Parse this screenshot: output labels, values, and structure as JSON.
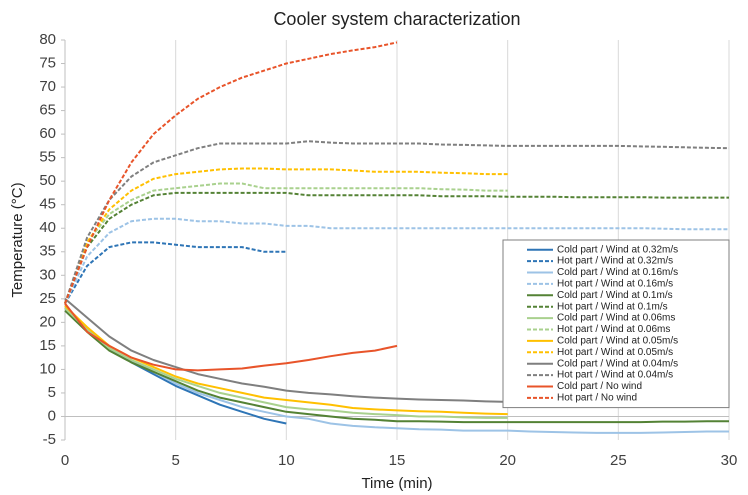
{
  "chart_data": {
    "type": "line",
    "title": "Cooler system characterization",
    "x_label": "Time (min)",
    "y_label": "Temperature (°C)",
    "xlim": [
      0,
      30
    ],
    "xticks": [
      0,
      5,
      10,
      15,
      20,
      25,
      30
    ],
    "ylim": [
      -5,
      80
    ],
    "yticks": [
      -5,
      0,
      5,
      10,
      15,
      20,
      25,
      30,
      35,
      40,
      45,
      50,
      55,
      60,
      65,
      70,
      75,
      80
    ],
    "grid": "x",
    "legend": "center right",
    "x": [
      0,
      1,
      2,
      3,
      4,
      5,
      6,
      7,
      8,
      9,
      10,
      11,
      12,
      13,
      14,
      15,
      16,
      17,
      18,
      19,
      20,
      21,
      22,
      23,
      24,
      25,
      26,
      27,
      28,
      29,
      30
    ],
    "series": [
      {
        "name": "Cold part / Wind at 0.32m/s",
        "color": "#2e75b6",
        "dashed": false,
        "values": [
          23,
          18.5,
          14.5,
          11.5,
          9,
          6.5,
          4.5,
          2.5,
          1,
          -0.5,
          -1.5,
          null,
          null,
          null,
          null,
          null,
          null,
          null,
          null,
          null,
          null,
          null,
          null,
          null,
          null,
          null,
          null,
          null,
          null,
          null,
          null
        ]
      },
      {
        "name": "Hot part / Wind at 0.32m/s",
        "color": "#2e75b6",
        "dashed": true,
        "values": [
          24,
          32,
          36,
          37,
          37,
          36.5,
          36,
          36,
          36,
          35,
          35,
          null,
          null,
          null,
          null,
          null,
          null,
          null,
          null,
          null,
          null,
          null,
          null,
          null,
          null,
          null,
          null,
          null,
          null,
          null,
          null
        ]
      },
      {
        "name": "Cold part / Wind at 0.16m/s",
        "color": "#9dc3e6",
        "dashed": false,
        "values": [
          23,
          18.5,
          14.5,
          12,
          9.5,
          7,
          5,
          3.5,
          2,
          1,
          0,
          -0.5,
          -1.5,
          -2,
          -2.3,
          -2.5,
          -2.7,
          -2.8,
          -3,
          -3,
          -3,
          -3.2,
          -3.3,
          -3.4,
          -3.5,
          -3.5,
          -3.5,
          -3.4,
          -3.3,
          -3.2,
          -3.2
        ]
      },
      {
        "name": "Hot part / Wind at 0.16m/s",
        "color": "#9dc3e6",
        "dashed": true,
        "values": [
          24,
          34,
          39,
          41.5,
          42,
          42,
          41.5,
          41.5,
          41,
          41,
          40.5,
          40.5,
          40,
          40,
          40,
          40,
          40,
          40,
          40,
          40,
          40,
          40,
          40,
          40,
          40,
          40,
          40,
          39.9,
          39.8,
          39.8,
          39.8
        ]
      },
      {
        "name": "Cold part / Wind at 0.1m/s",
        "color": "#548235",
        "dashed": false,
        "values": [
          22.5,
          18,
          14,
          11.5,
          9.5,
          7.5,
          5.5,
          4,
          3,
          2,
          1,
          0.5,
          0,
          -0.5,
          -0.7,
          -1,
          -1,
          -1.1,
          -1.2,
          -1.2,
          -1.2,
          -1.2,
          -1.2,
          -1.2,
          -1.2,
          -1.2,
          -1.2,
          -1.1,
          -1.1,
          -1,
          -1
        ]
      },
      {
        "name": "Hot part / Wind at 0.1m/s",
        "color": "#548235",
        "dashed": true,
        "values": [
          24,
          36,
          42,
          45,
          47,
          47.5,
          47.5,
          47.5,
          47.5,
          47.5,
          47.5,
          47,
          47,
          47,
          47,
          47,
          47,
          46.8,
          46.8,
          46.8,
          46.7,
          46.7,
          46.7,
          46.6,
          46.6,
          46.6,
          46.6,
          46.5,
          46.5,
          46.5,
          46.5
        ]
      },
      {
        "name": "Cold part / Wind at 0.06ms",
        "color": "#a9d18e",
        "dashed": false,
        "values": [
          23,
          18.5,
          14.5,
          12,
          10,
          8,
          6.5,
          5,
          4,
          3,
          2,
          1.5,
          1.3,
          0.8,
          0.5,
          0.3,
          0,
          0,
          -0.2,
          -0.3,
          -0.3,
          null,
          null,
          null,
          null,
          null,
          null,
          null,
          null,
          null,
          null
        ]
      },
      {
        "name": "Hot part / Wind at 0.06ms",
        "color": "#a9d18e",
        "dashed": true,
        "values": [
          24,
          37,
          43,
          46,
          48,
          48.5,
          49,
          49.5,
          49.5,
          48.5,
          48.5,
          48.5,
          48.5,
          48.5,
          48.5,
          48.5,
          48.5,
          48.3,
          48.2,
          48,
          48,
          null,
          null,
          null,
          null,
          null,
          null,
          null,
          null,
          null,
          null
        ]
      },
      {
        "name": "Cold part / Wind at 0.05m/s",
        "color": "#ffc000",
        "dashed": false,
        "values": [
          23.5,
          19,
          15,
          12.5,
          10.5,
          8.5,
          7,
          6,
          5,
          4,
          3.5,
          3,
          2.5,
          1.8,
          1.5,
          1.3,
          1.1,
          1,
          0.8,
          0.6,
          0.5,
          null,
          null,
          null,
          null,
          null,
          null,
          null,
          null,
          null,
          null
        ]
      },
      {
        "name": "Hot part / Wind at 0.05m/s",
        "color": "#ffc000",
        "dashed": true,
        "values": [
          24,
          37,
          44,
          48,
          50.5,
          51.5,
          52,
          52.5,
          52.7,
          52.7,
          52.5,
          52.5,
          52.5,
          52.3,
          52,
          52,
          52,
          51.8,
          51.7,
          51.5,
          51.5,
          null,
          null,
          null,
          null,
          null,
          null,
          null,
          null,
          null,
          null
        ]
      },
      {
        "name": "Cold part / Wind at 0.04m/s",
        "color": "#7f7f7f",
        "dashed": false,
        "values": [
          25,
          21,
          17,
          14,
          12,
          10.5,
          9,
          8,
          7,
          6.3,
          5.5,
          5,
          4.7,
          4.3,
          4,
          3.8,
          3.6,
          3.5,
          3.4,
          3.2,
          3.1,
          3,
          3,
          2.9,
          2.8,
          2.8,
          2.7,
          2.6,
          2.5,
          2.5,
          2.4
        ]
      },
      {
        "name": "Hot part / Wind at 0.04m/s",
        "color": "#7f7f7f",
        "dashed": true,
        "values": [
          24,
          38,
          46,
          51,
          54,
          55.5,
          57,
          58,
          58,
          58,
          58,
          58.5,
          58.2,
          58,
          58,
          58,
          58,
          57.8,
          57.7,
          57.6,
          57.5,
          57.5,
          57.5,
          57.5,
          57.5,
          57.5,
          57.4,
          57.3,
          57.2,
          57.1,
          57
        ]
      },
      {
        "name": "Cold part / No wind",
        "color": "#e8542a",
        "dashed": false,
        "values": [
          24,
          18,
          15,
          12.5,
          11,
          10,
          9.8,
          10,
          10.2,
          10.8,
          11.3,
          12,
          12.8,
          13.5,
          14,
          15,
          null,
          null,
          null,
          null,
          null,
          null,
          null,
          null,
          null,
          null,
          null,
          null,
          null,
          null,
          null
        ]
      },
      {
        "name": "Hot part / No wind",
        "color": "#e8542a",
        "dashed": true,
        "values": [
          24,
          36,
          46,
          54,
          60,
          64,
          67.5,
          70,
          72,
          73.5,
          75,
          76,
          77,
          77.8,
          78.5,
          79.5,
          null,
          null,
          null,
          null,
          null,
          null,
          null,
          null,
          null,
          null,
          null,
          null,
          null,
          null,
          null
        ]
      }
    ]
  }
}
